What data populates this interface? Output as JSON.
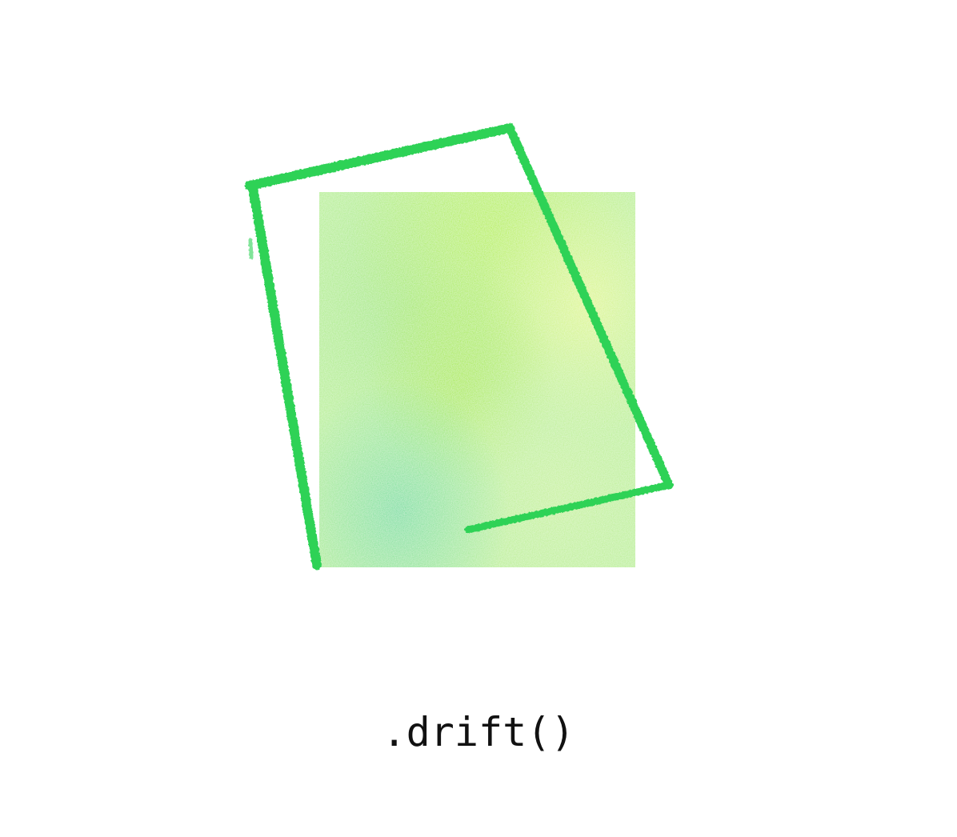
{
  "caption": ".drift()",
  "illustration": {
    "fill_swatch": {
      "description_colors": [
        "#b9f27a",
        "#8fe68f",
        "#d7f58a",
        "#7fe0a0"
      ]
    },
    "outline_frame": {
      "color": "#2fd257"
    }
  }
}
